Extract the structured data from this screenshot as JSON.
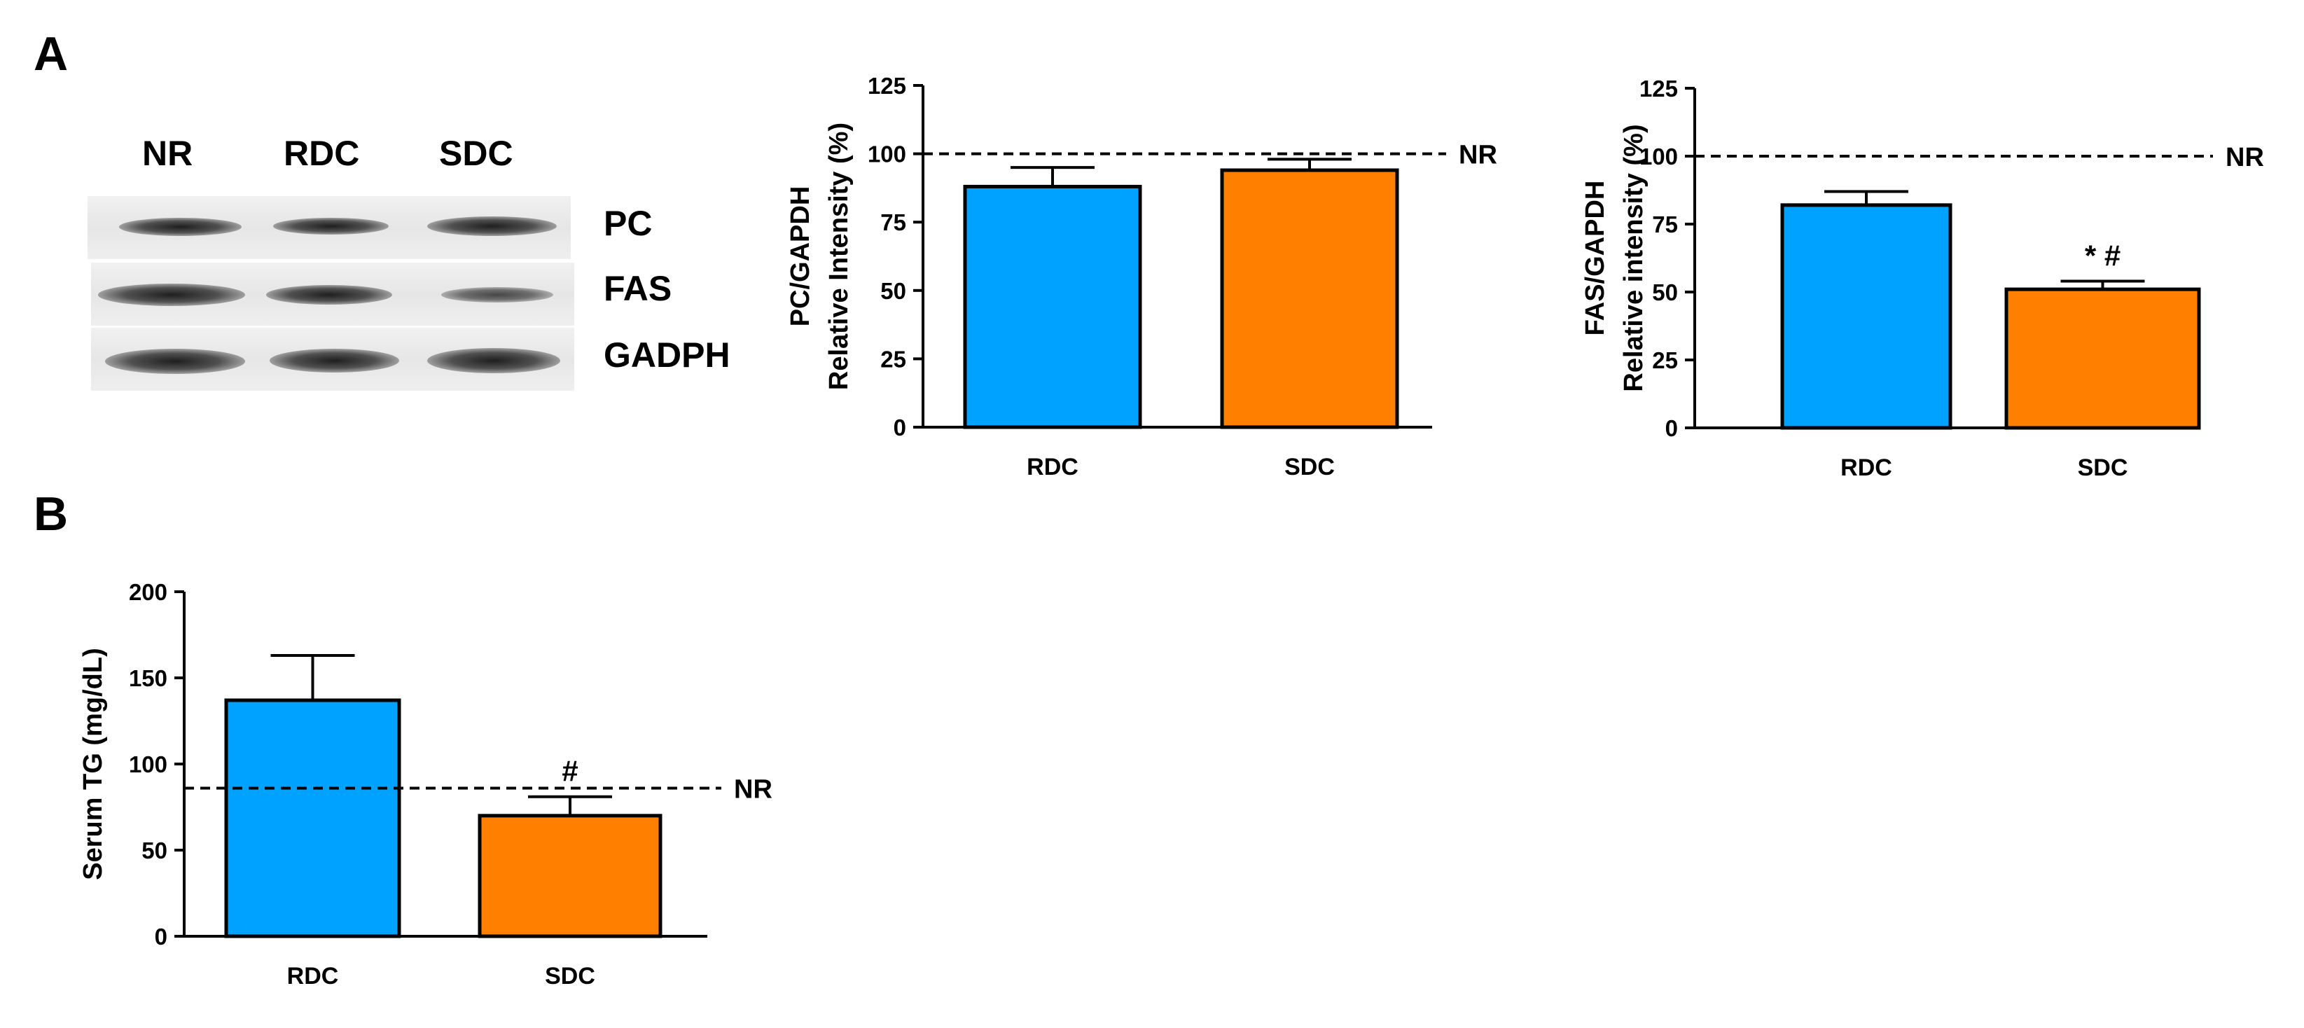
{
  "panel_labels": {
    "a": "A",
    "b": "B"
  },
  "blot": {
    "lanes": [
      "NR",
      "RDC",
      "SDC"
    ],
    "rows": [
      "PC",
      "FAS",
      "GADPH"
    ]
  },
  "colors": {
    "rdc": "#00a2ff",
    "sdc": "#ff8000",
    "axis": "#000000"
  },
  "chart_data": [
    {
      "id": "pc",
      "type": "bar",
      "categories": [
        "RDC",
        "SDC"
      ],
      "values": [
        88,
        94
      ],
      "errors": [
        7,
        4
      ],
      "ylabel_lines": [
        "PC/GAPDH",
        "Relative Intensity (%)"
      ],
      "ylim": [
        0,
        125
      ],
      "yticks": [
        0,
        25,
        50,
        75,
        100,
        125
      ],
      "reference": {
        "value": 100,
        "label": "NR"
      },
      "annotations": [
        "",
        ""
      ]
    },
    {
      "id": "fas",
      "type": "bar",
      "categories": [
        "RDC",
        "SDC"
      ],
      "values": [
        82,
        51
      ],
      "errors": [
        5,
        3
      ],
      "ylabel_lines": [
        "FAS/GAPDH",
        "Relative intensity (%)"
      ],
      "ylim": [
        0,
        125
      ],
      "yticks": [
        0,
        25,
        50,
        75,
        100,
        125
      ],
      "reference": {
        "value": 100,
        "label": "NR"
      },
      "annotations": [
        "",
        "* #"
      ]
    },
    {
      "id": "tg",
      "type": "bar",
      "categories": [
        "RDC",
        "SDC"
      ],
      "values": [
        137,
        70
      ],
      "errors": [
        26,
        11
      ],
      "ylabel_lines": [
        "Serum TG (mg/dL)"
      ],
      "ylim": [
        0,
        200
      ],
      "yticks": [
        0,
        50,
        100,
        150,
        200
      ],
      "reference": {
        "value": 86,
        "label": "NR"
      },
      "annotations": [
        "",
        "#"
      ]
    }
  ]
}
